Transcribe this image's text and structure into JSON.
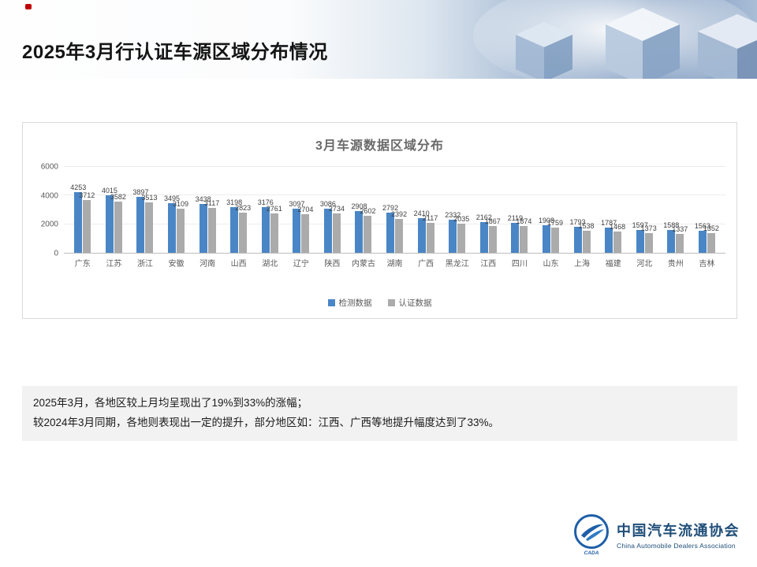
{
  "slide": {
    "title": "2025年3月行认证车源区域分布情况"
  },
  "chart_data": {
    "type": "bar",
    "title": "3月车源数据区域分布",
    "categories": [
      "广东",
      "江苏",
      "浙江",
      "安徽",
      "河南",
      "山西",
      "湖北",
      "辽宁",
      "陕西",
      "内蒙古",
      "湖南",
      "广西",
      "黑龙江",
      "江西",
      "四川",
      "山东",
      "上海",
      "福建",
      "河北",
      "贵州",
      "吉林"
    ],
    "series": [
      {
        "name": "检测数据",
        "color": "#4a86c5",
        "values": [
          4253,
          4015,
          3897,
          3495,
          3438,
          3198,
          3176,
          3097,
          3086,
          2908,
          2792,
          2410,
          2332,
          2162,
          2119,
          1908,
          1793,
          1787,
          1597,
          1588,
          1563
        ]
      },
      {
        "name": "认证数据",
        "color": "#ababab",
        "values": [
          3712,
          3582,
          3513,
          3109,
          3117,
          2823,
          2761,
          2704,
          2734,
          2602,
          2392,
          2117,
          2035,
          1867,
          1874,
          1759,
          1538,
          1468,
          1373,
          1337,
          1352
        ]
      }
    ],
    "ylim": [
      0,
      6000
    ],
    "yticks": [
      0,
      2000,
      4000,
      6000
    ],
    "grid": true,
    "legend_position": "bottom"
  },
  "summary": {
    "line1": "2025年3月，各地区较上月均呈现出了19%到33%的涨幅；",
    "line2": "较2024年3月同期，各地则表现出一定的提升，部分地区如：江西、广西等地提升幅度达到了33%。"
  },
  "footer": {
    "org_cn": "中国汽车流通协会",
    "org_en": "China Automobile Dealers Association",
    "logo_text": "CADA"
  }
}
